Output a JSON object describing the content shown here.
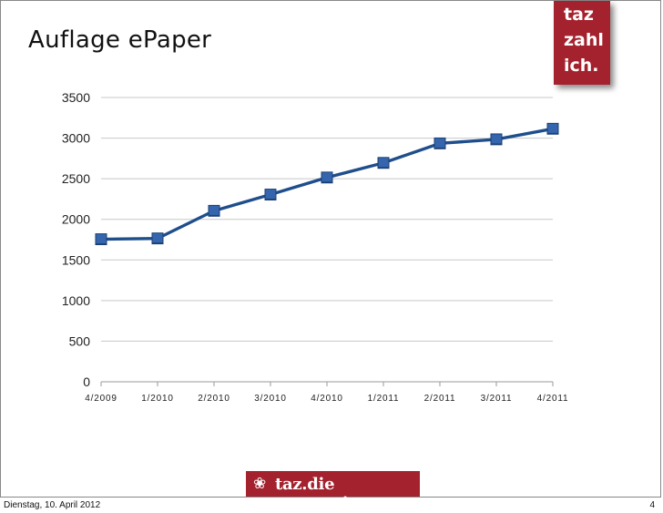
{
  "slide": {
    "title": "Auflage ePaper",
    "brand_lines": [
      "taz",
      "zahl",
      "ich."
    ],
    "footer_logo": "taz.die tageszeitung",
    "date": "Dienstag, 10. April 2012",
    "page_number": "4"
  },
  "colors": {
    "series": "#1f4e8c",
    "brand": "#a3222d",
    "grid": "#c8c8c8"
  },
  "chart_data": {
    "type": "line",
    "title": "",
    "xlabel": "",
    "ylabel": "",
    "categories": [
      "4/2009",
      "1/2010",
      "2/2010",
      "3/2010",
      "4/2010",
      "1/2011",
      "2/2011",
      "3/2011",
      "4/2011"
    ],
    "series": [
      {
        "values": [
          1750,
          1760,
          2100,
          2300,
          2510,
          2690,
          2930,
          2980,
          3110
        ]
      },
      {
        "values": [
          1760,
          1770,
          2110,
          2310,
          2520,
          2700,
          2940,
          2990,
          3120
        ]
      }
    ],
    "ylim": [
      0,
      3500
    ],
    "yticks": [
      0,
      500,
      1000,
      1500,
      2000,
      2500,
      3000,
      3500
    ],
    "grid": true,
    "legend": "none",
    "marker": "square"
  }
}
